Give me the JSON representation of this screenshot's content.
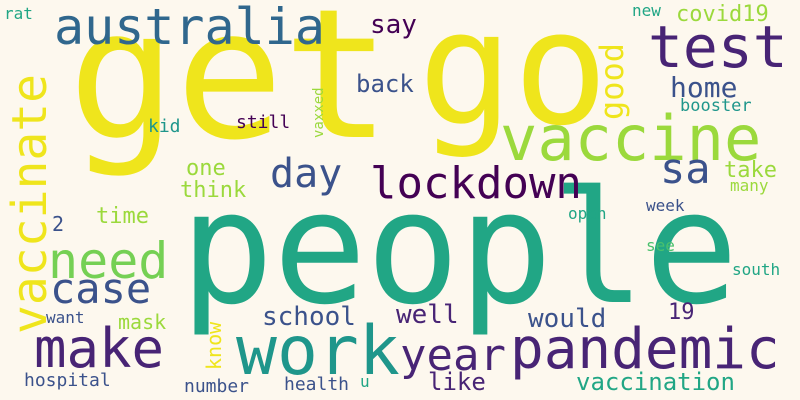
{
  "palette": {
    "background": "#fdf8ee",
    "yellow": "#efe51c",
    "teal": "#21a685",
    "green": "#75d054",
    "lightgreen": "#9bd93c",
    "blue": "#30678d",
    "navy": "#3b528b",
    "purple": "#482475",
    "darkpurple": "#440154",
    "cyan": "#1f968b",
    "mint": "#4ac16d"
  },
  "words": [
    {
      "text": "get",
      "color": "yellow",
      "rotation": 0
    },
    {
      "text": "go",
      "color": "yellow",
      "rotation": 0
    },
    {
      "text": "people",
      "color": "teal",
      "rotation": 0
    },
    {
      "text": "work",
      "color": "cyan",
      "rotation": 0
    },
    {
      "text": "pandemic",
      "color": "purple",
      "rotation": 0
    },
    {
      "text": "vaccine",
      "color": "lightgreen",
      "rotation": 0
    },
    {
      "text": "australia",
      "color": "blue",
      "rotation": 0
    },
    {
      "text": "test",
      "color": "purple",
      "rotation": 0
    },
    {
      "text": "vaccinate",
      "color": "yellow",
      "rotation": 90
    },
    {
      "text": "make",
      "color": "purple",
      "rotation": 0
    },
    {
      "text": "need",
      "color": "green",
      "rotation": 0
    },
    {
      "text": "case",
      "color": "navy",
      "rotation": 0
    },
    {
      "text": "lockdown",
      "color": "darkpurple",
      "rotation": 0
    },
    {
      "text": "year",
      "color": "purple",
      "rotation": 0
    },
    {
      "text": "day",
      "color": "navy",
      "rotation": 0
    },
    {
      "text": "sa",
      "color": "navy",
      "rotation": 0
    },
    {
      "text": "good",
      "color": "yellow",
      "rotation": 90
    },
    {
      "text": "home",
      "color": "navy",
      "rotation": 0
    },
    {
      "text": "say",
      "color": "darkpurple",
      "rotation": 0
    },
    {
      "text": "back",
      "color": "navy",
      "rotation": 0
    },
    {
      "text": "covid19",
      "color": "lightgreen",
      "rotation": 0
    },
    {
      "text": "booster",
      "color": "cyan",
      "rotation": 0
    },
    {
      "text": "new",
      "color": "teal",
      "rotation": 0
    },
    {
      "text": "rat",
      "color": "teal",
      "rotation": 0
    },
    {
      "text": "kid",
      "color": "cyan",
      "rotation": 0
    },
    {
      "text": "still",
      "color": "darkpurple",
      "rotation": 0
    },
    {
      "text": "vaxxed",
      "color": "lightgreen",
      "rotation": 90
    },
    {
      "text": "one",
      "color": "lightgreen",
      "rotation": 0
    },
    {
      "text": "think",
      "color": "lightgreen",
      "rotation": 0
    },
    {
      "text": "take",
      "color": "lightgreen",
      "rotation": 0
    },
    {
      "text": "many",
      "color": "lightgreen",
      "rotation": 0
    },
    {
      "text": "time",
      "color": "lightgreen",
      "rotation": 0
    },
    {
      "text": "2",
      "color": "navy",
      "rotation": 0
    },
    {
      "text": "open",
      "color": "teal",
      "rotation": 0
    },
    {
      "text": "week",
      "color": "navy",
      "rotation": 0
    },
    {
      "text": "see",
      "color": "mint",
      "rotation": 0
    },
    {
      "text": "south",
      "color": "teal",
      "rotation": 0
    },
    {
      "text": "school",
      "color": "navy",
      "rotation": 0
    },
    {
      "text": "well",
      "color": "purple",
      "rotation": 0
    },
    {
      "text": "would",
      "color": "navy",
      "rotation": 0
    },
    {
      "text": "19",
      "color": "purple",
      "rotation": 0
    },
    {
      "text": "want",
      "color": "navy",
      "rotation": 0
    },
    {
      "text": "mask",
      "color": "lightgreen",
      "rotation": 0
    },
    {
      "text": "know",
      "color": "yellow",
      "rotation": 90
    },
    {
      "text": "vaccination",
      "color": "teal",
      "rotation": 0
    },
    {
      "text": "like",
      "color": "purple",
      "rotation": 0
    },
    {
      "text": "health",
      "color": "navy",
      "rotation": 0
    },
    {
      "text": "number",
      "color": "navy",
      "rotation": 0
    },
    {
      "text": "hospital",
      "color": "navy",
      "rotation": 0
    },
    {
      "text": "u",
      "color": "teal",
      "rotation": 0
    }
  ]
}
